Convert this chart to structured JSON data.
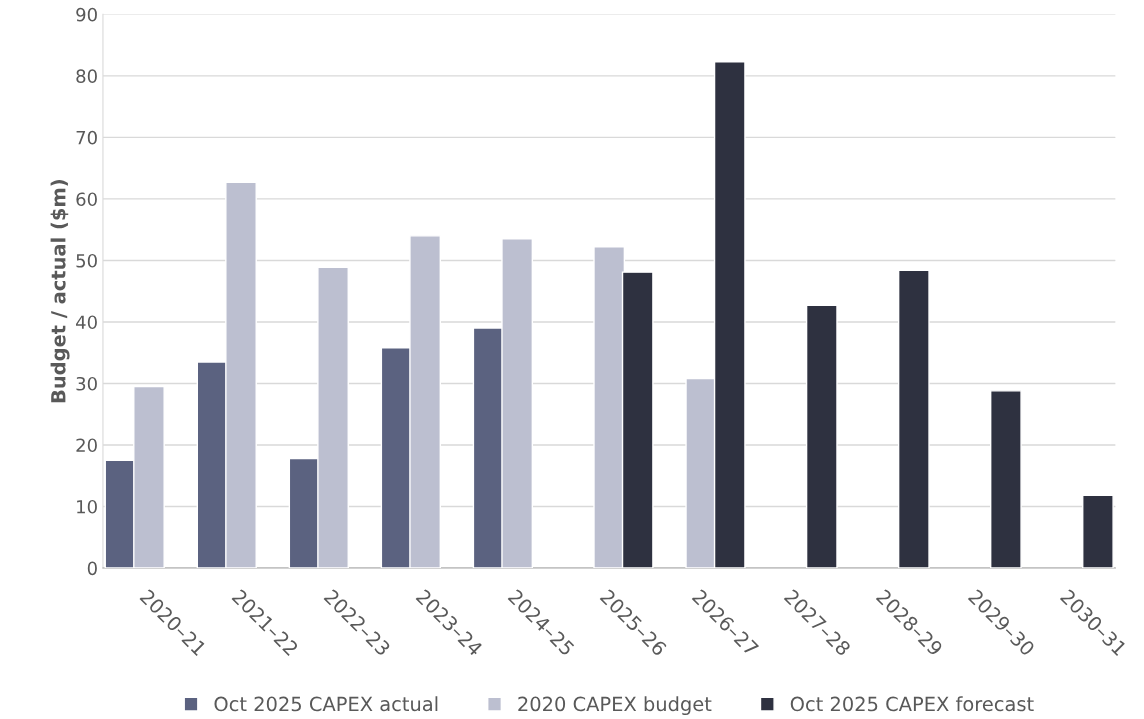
{
  "chart_data": {
    "type": "bar",
    "ylabel": "Budget / actual ($m)",
    "categories": [
      "2020–21",
      "2021–22",
      "2022–23",
      "2023–24",
      "2024–25",
      "2025–26",
      "2026–27",
      "2027–28",
      "2028–29",
      "2029–30",
      "2030–31"
    ],
    "series": [
      {
        "name": "Oct 2025 CAPEX actual",
        "color": "#5b6280",
        "values": [
          17.5,
          33.5,
          17.8,
          35.8,
          39.0,
          null,
          null,
          null,
          null,
          null,
          null
        ]
      },
      {
        "name": "2020 CAPEX budget",
        "color": "#bcbfd0",
        "values": [
          29.5,
          62.7,
          48.9,
          54.0,
          53.5,
          52.2,
          30.8,
          null,
          null,
          null,
          null
        ]
      },
      {
        "name": "Oct 2025 CAPEX forecast",
        "color": "#2e3140",
        "values": [
          null,
          null,
          null,
          null,
          null,
          48.1,
          82.3,
          42.7,
          48.4,
          28.8,
          11.8
        ]
      }
    ],
    "ylim": [
      0,
      90
    ],
    "yticks": [
      0,
      10,
      20,
      30,
      40,
      50,
      60,
      70,
      80,
      90
    ],
    "grid": "y",
    "legend": "bottom"
  }
}
